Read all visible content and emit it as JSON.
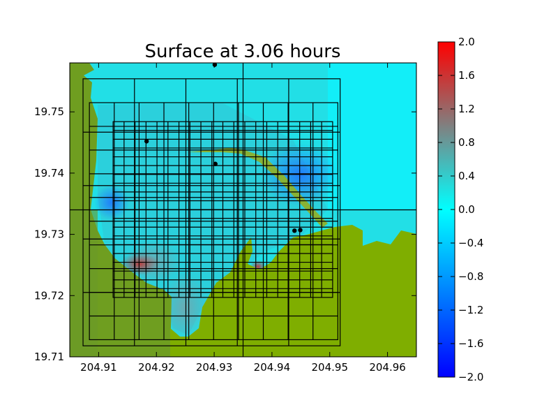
{
  "chart_data": {
    "type": "heatmap",
    "title": "Surface at 3.06 hours",
    "xlabel": "",
    "ylabel": "",
    "xlim": [
      204.905,
      204.965
    ],
    "ylim": [
      19.71,
      19.758
    ],
    "x_ticks": [
      {
        "value": 204.91,
        "label": "204.91"
      },
      {
        "value": 204.92,
        "label": "204.92"
      },
      {
        "value": 204.93,
        "label": "204.93"
      },
      {
        "value": 204.94,
        "label": "204.94"
      },
      {
        "value": 204.95,
        "label": "204.95"
      },
      {
        "value": 204.96,
        "label": "204.96"
      }
    ],
    "y_ticks": [
      {
        "value": 19.71,
        "label": "19.71"
      },
      {
        "value": 19.72,
        "label": "19.72"
      },
      {
        "value": 19.73,
        "label": "19.73"
      },
      {
        "value": 19.74,
        "label": "19.74"
      },
      {
        "value": 19.75,
        "label": "19.75"
      }
    ],
    "colorbar": {
      "range": [
        -2.0,
        2.0
      ],
      "ticks": [
        {
          "value": 2.0,
          "label": "2.0"
        },
        {
          "value": 1.6,
          "label": "1.6"
        },
        {
          "value": 1.2,
          "label": "1.2"
        },
        {
          "value": 0.8,
          "label": "0.8"
        },
        {
          "value": 0.4,
          "label": "0.4"
        },
        {
          "value": 0.0,
          "label": "0.0"
        },
        {
          "value": -0.4,
          "label": "−0.4"
        },
        {
          "value": -0.8,
          "label": "−0.8"
        },
        {
          "value": -1.2,
          "label": "−1.2"
        },
        {
          "value": -1.6,
          "label": "−1.6"
        },
        {
          "value": -2.0,
          "label": "−2.0"
        }
      ],
      "colors": {
        "low": "#0000ff",
        "mid_low": "#00ffff",
        "mid_high": "#808080",
        "high": "#ff0000"
      }
    },
    "land_color": "#7fae00",
    "water_color": "#22dfe6",
    "grid_boxes": [
      {
        "x0": 204.905,
        "x1": 204.965,
        "y0": 19.71,
        "y1": 19.758,
        "nx": 1,
        "ny": 1,
        "split_x": 204.935,
        "split_y": 19.734
      },
      {
        "x0": 204.9073,
        "x1": 204.9518,
        "y0": 19.7118,
        "y1": 19.7554,
        "nx": 5,
        "ny": 5
      },
      {
        "x0": 204.9084,
        "x1": 204.9514,
        "y0": 19.7128,
        "y1": 19.7515,
        "nx": 10,
        "ny": 10
      },
      {
        "x0": 204.9125,
        "x1": 204.9505,
        "y0": 19.7197,
        "y1": 19.7484,
        "nx": 20,
        "ny": 20
      }
    ],
    "gauges": [
      {
        "x": 204.9301,
        "y": 19.7577
      },
      {
        "x": 204.9183,
        "y": 19.7452
      },
      {
        "x": 204.9302,
        "y": 19.7415
      },
      {
        "x": 204.9439,
        "y": 19.7306
      },
      {
        "x": 204.9449,
        "y": 19.7307
      }
    ]
  }
}
